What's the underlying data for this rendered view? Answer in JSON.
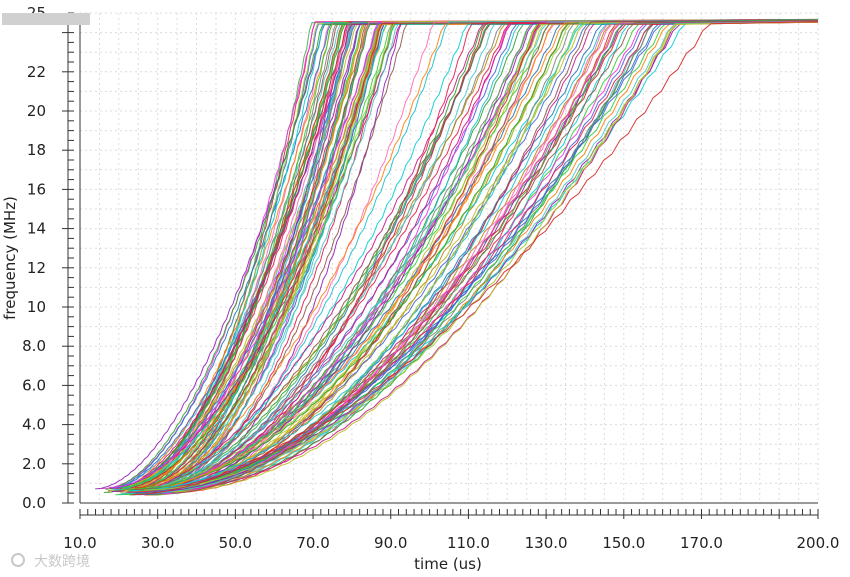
{
  "chart_data": {
    "type": "line",
    "title": "",
    "xlabel": "time (us)",
    "ylabel": "frequency (MHz)",
    "xlim": [
      10,
      200
    ],
    "ylim": [
      0,
      25
    ],
    "x_ticks": [
      "10.0",
      "30.0",
      "50.0",
      "70.0",
      "90.0",
      "110.0",
      "130.0",
      "150.0",
      "170.0",
      "200.0"
    ],
    "y_ticks": [
      "0.0",
      "2.0",
      "4.0",
      "6.0",
      "8.0",
      "10",
      "12",
      "14",
      "16",
      "18",
      "20",
      "22",
      "25"
    ],
    "grid": true,
    "legend": "none",
    "series_groups": [
      {
        "group": "fast",
        "count": 70,
        "start_time_range": [
          12,
          32
        ],
        "start_freq": 0.5,
        "end_time_range": [
          68,
          96
        ],
        "plateau_freq": 24.6
      },
      {
        "group": "slow",
        "count": 80,
        "start_time_range": [
          18,
          35
        ],
        "start_freq": 0.4,
        "end_time_range": [
          100,
          175
        ],
        "plateau_freq": 24.6
      }
    ],
    "colors": [
      "#e6194b",
      "#3cb44b",
      "#4363d8",
      "#f032e6",
      "#911eb4",
      "#46c8c8",
      "#9acd32",
      "#bcbd22",
      "#d62728",
      "#8c564b",
      "#ff69b4",
      "#1f77b4",
      "#2ca02c",
      "#ff7f0e",
      "#17becf",
      "#7f7f7f",
      "#b8860b",
      "#00ced1",
      "#c71585",
      "#32cd32"
    ]
  },
  "watermark": "大数跨境"
}
